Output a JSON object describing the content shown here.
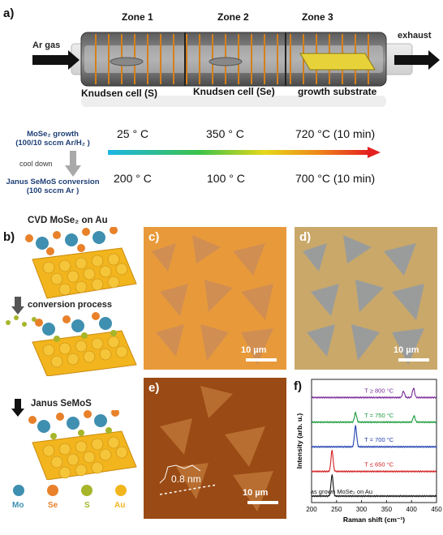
{
  "panel_a": {
    "label": "a)",
    "zones": [
      "Zone 1",
      "Zone 2",
      "Zone 3"
    ],
    "inlet": "Ar gas",
    "outlet": "exhaust",
    "cells": [
      "Knudsen cell (S)",
      "Knudsen cell (Se)",
      "growth substrate"
    ],
    "step1_line1": "MoSe₂ growth",
    "step1_line2": "(100/10 sccm Ar/H₂ )",
    "cool": "cool down",
    "step2_line1": "Janus SeMoS conversion",
    "step2_line2": "(100 sccm Ar )",
    "temps_top": [
      "25 ° C",
      "350 ° C",
      "720 °C (10 min)"
    ],
    "temps_bottom": [
      "200 ° C",
      "100 ° C",
      "700 °C (10 min)"
    ]
  },
  "panel_b": {
    "label": "b)",
    "title1": "CVD MoSe₂ on Au",
    "title2": "conversion process",
    "title3": "Janus SeMoS",
    "legend": [
      {
        "name": "Mo",
        "color": "#3f8fb0"
      },
      {
        "name": "Se",
        "color": "#e8812a"
      },
      {
        "name": "S",
        "color": "#a7b52a"
      },
      {
        "name": "Au",
        "color": "#f2b51d"
      }
    ]
  },
  "panel_c": {
    "label": "c)",
    "scalebar": "10 µm"
  },
  "panel_d": {
    "label": "d)",
    "scalebar": "10 µm"
  },
  "panel_e": {
    "label": "e)",
    "scalebar": "10 µm",
    "height": "0.8 nm"
  },
  "panel_f": {
    "label": "f)",
    "chart_data": {
      "type": "line",
      "xlabel": "Raman shift (cm⁻¹)",
      "ylabel": "Intensity (arb. u.)",
      "xlim": [
        200,
        450
      ],
      "xticks": [
        200,
        250,
        300,
        350,
        400,
        450
      ],
      "series": [
        {
          "name": "as grown MoSe₂ on Au",
          "color": "#111111",
          "peaks": [
            [
              241,
              1.0
            ]
          ]
        },
        {
          "name": "T ≤ 650 °C",
          "color": "#d42020",
          "peaks": [
            [
              241,
              1.0
            ]
          ]
        },
        {
          "name": "T = 700 °C",
          "color": "#2040b0",
          "peaks": [
            [
              288,
              1.0
            ]
          ]
        },
        {
          "name": "T = 750 °C",
          "color": "#1a9a3a",
          "peaks": [
            [
              288,
              0.45
            ],
            [
              405,
              0.3
            ]
          ]
        },
        {
          "name": "T ≥ 800 °C",
          "color": "#7a2a9a",
          "peaks": [
            [
              384,
              0.3
            ],
            [
              404,
              0.45
            ]
          ]
        }
      ]
    }
  }
}
